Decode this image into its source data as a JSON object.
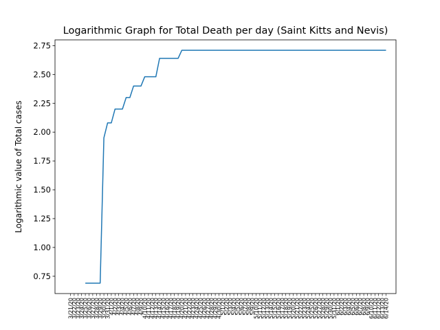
{
  "chart_data": {
    "type": "line",
    "title": "Logarithmic Graph for Total Death per day (Saint Kitts and Nevis)",
    "xlabel": "",
    "ylabel": "Logarithmic value of Total cases",
    "ylim": [
      0.6,
      2.8
    ],
    "yticks": [
      "0.75",
      "1.00",
      "1.25",
      "1.50",
      "1.75",
      "2.00",
      "2.25",
      "2.50",
      "2.75"
    ],
    "grid": false,
    "line_color": "#1f77b4",
    "x": [
      "3/21/20",
      "3/22/20",
      "3/23/20",
      "3/24/20",
      "3/25/20",
      "3/26/20",
      "3/27/20",
      "3/28/20",
      "3/29/20",
      "3/30/20",
      "3/31/20",
      "4/1/20",
      "4/2/20",
      "4/3/20",
      "4/4/20",
      "4/5/20",
      "4/6/20",
      "4/7/20",
      "4/8/20",
      "4/9/20",
      "4/10/20",
      "4/11/20",
      "4/12/20",
      "4/13/20",
      "4/14/20",
      "4/15/20",
      "4/16/20",
      "4/17/20",
      "4/18/20",
      "4/19/20",
      "4/20/20",
      "4/21/20",
      "4/22/20",
      "4/23/20",
      "4/24/20",
      "4/25/20",
      "4/26/20",
      "4/27/20",
      "4/28/20",
      "4/29/20",
      "4/30/20",
      "5/1/20",
      "5/2/20",
      "5/3/20",
      "5/4/20",
      "5/5/20",
      "5/6/20",
      "5/7/20",
      "5/8/20",
      "5/9/20",
      "5/10/20",
      "5/11/20",
      "5/12/20",
      "5/13/20",
      "5/14/20",
      "5/15/20",
      "5/16/20",
      "5/17/20",
      "5/18/20",
      "5/19/20",
      "5/20/20",
      "5/21/20",
      "5/22/20",
      "5/23/20",
      "5/24/20",
      "5/25/20",
      "5/26/20",
      "5/27/20",
      "5/28/20",
      "5/29/20",
      "5/30/20",
      "5/31/20",
      "6/1/20",
      "6/2/20",
      "6/3/20",
      "6/4/20",
      "6/5/20",
      "6/6/20",
      "6/7/20",
      "6/8/20",
      "6/9/20",
      "6/10/20",
      "6/11/20",
      "6/12/20",
      "6/13/20",
      "6/14/20"
    ],
    "series": [
      {
        "values": [
          null,
          null,
          null,
          null,
          0.69,
          0.69,
          0.69,
          0.69,
          0.69,
          1.95,
          2.08,
          2.08,
          2.2,
          2.2,
          2.2,
          2.3,
          2.3,
          2.4,
          2.4,
          2.4,
          2.48,
          2.48,
          2.48,
          2.48,
          2.64,
          2.64,
          2.64,
          2.64,
          2.64,
          2.64,
          2.71,
          2.71,
          2.71,
          2.71,
          2.71,
          2.71,
          2.71,
          2.71,
          2.71,
          2.71,
          2.71,
          2.71,
          2.71,
          2.71,
          2.71,
          2.71,
          2.71,
          2.71,
          2.71,
          2.71,
          2.71,
          2.71,
          2.71,
          2.71,
          2.71,
          2.71,
          2.71,
          2.71,
          2.71,
          2.71,
          2.71,
          2.71,
          2.71,
          2.71,
          2.71,
          2.71,
          2.71,
          2.71,
          2.71,
          2.71,
          2.71,
          2.71,
          2.71,
          2.71,
          2.71,
          2.71,
          2.71,
          2.71,
          2.71,
          2.71,
          2.71,
          2.71,
          2.71,
          2.71,
          2.71,
          2.71
        ]
      }
    ]
  }
}
